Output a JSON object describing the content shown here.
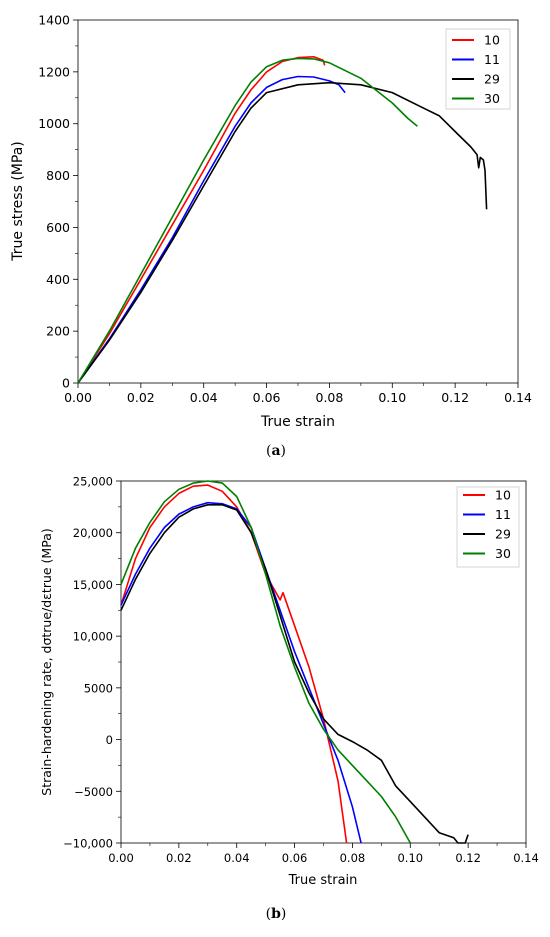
{
  "chart_data": [
    {
      "type": "line",
      "caption_letter": "a",
      "xlabel": "True strain",
      "ylabel": "True stress (MPa)",
      "xlim": [
        0,
        0.14
      ],
      "ylim": [
        0,
        1400
      ],
      "xticks": [
        "0.00",
        "0.02",
        "0.04",
        "0.06",
        "0.08",
        "0.10",
        "0.12",
        "0.14"
      ],
      "yticks": [
        "0",
        "200",
        "400",
        "600",
        "800",
        "1000",
        "1200",
        "1400"
      ],
      "legend_position": "top-right",
      "series": [
        {
          "name": "10",
          "color": "#ff0000",
          "x": [
            0,
            0.01,
            0.02,
            0.03,
            0.04,
            0.05,
            0.055,
            0.06,
            0.065,
            0.07,
            0.075,
            0.078,
            0.0785
          ],
          "y": [
            0,
            190,
            400,
            610,
            820,
            1040,
            1130,
            1200,
            1240,
            1255,
            1258,
            1245,
            1225
          ]
        },
        {
          "name": "11",
          "color": "#0000ff",
          "x": [
            0,
            0.01,
            0.02,
            0.03,
            0.04,
            0.05,
            0.055,
            0.06,
            0.065,
            0.07,
            0.075,
            0.08,
            0.083,
            0.085
          ],
          "y": [
            0,
            170,
            360,
            560,
            780,
            990,
            1080,
            1140,
            1170,
            1182,
            1180,
            1165,
            1150,
            1120
          ]
        },
        {
          "name": "29",
          "color": "#000000",
          "x": [
            0,
            0.01,
            0.02,
            0.03,
            0.04,
            0.05,
            0.055,
            0.06,
            0.07,
            0.08,
            0.09,
            0.1,
            0.11,
            0.115,
            0.12,
            0.125,
            0.127,
            0.1275,
            0.128,
            0.129,
            0.1295,
            0.13
          ],
          "y": [
            0,
            165,
            350,
            550,
            760,
            970,
            1060,
            1120,
            1150,
            1158,
            1150,
            1120,
            1060,
            1030,
            970,
            910,
            880,
            830,
            870,
            860,
            820,
            670
          ]
        },
        {
          "name": "30",
          "color": "#008000",
          "x": [
            0,
            0.01,
            0.02,
            0.03,
            0.04,
            0.05,
            0.055,
            0.06,
            0.065,
            0.07,
            0.075,
            0.08,
            0.09,
            0.1,
            0.105,
            0.108
          ],
          "y": [
            0,
            200,
            420,
            640,
            860,
            1070,
            1160,
            1220,
            1245,
            1252,
            1250,
            1235,
            1175,
            1080,
            1020,
            990
          ]
        }
      ]
    },
    {
      "type": "line",
      "caption_letter": "b",
      "xlabel": "True strain",
      "ylabel": "Strain-hardening rate, dσtrue/dεtrue (MPa)",
      "xlim": [
        0,
        0.14
      ],
      "ylim": [
        -10000,
        25000
      ],
      "xticks": [
        "0.00",
        "0.02",
        "0.04",
        "0.06",
        "0.08",
        "0.10",
        "0.12",
        "0.14"
      ],
      "yticks": [
        "−10,000",
        "−5000",
        "0",
        "5000",
        "10,000",
        "15,000",
        "20,000",
        "25,000"
      ],
      "legend_position": "top-right",
      "series": [
        {
          "name": "10",
          "color": "#ff0000",
          "x": [
            0,
            0.005,
            0.01,
            0.015,
            0.02,
            0.025,
            0.03,
            0.035,
            0.04,
            0.045,
            0.05,
            0.055,
            0.056,
            0.06,
            0.065,
            0.07,
            0.075,
            0.078
          ],
          "y": [
            13000,
            17500,
            20500,
            22500,
            23800,
            24500,
            24600,
            24000,
            22500,
            20000,
            16000,
            13500,
            14200,
            11000,
            7000,
            2000,
            -4000,
            -10000
          ]
        },
        {
          "name": "11",
          "color": "#0000ff",
          "x": [
            0,
            0.005,
            0.01,
            0.015,
            0.02,
            0.025,
            0.03,
            0.035,
            0.04,
            0.045,
            0.05,
            0.055,
            0.06,
            0.065,
            0.07,
            0.075,
            0.08,
            0.083
          ],
          "y": [
            13000,
            16000,
            18500,
            20500,
            21800,
            22500,
            22900,
            22800,
            22300,
            20500,
            16500,
            12500,
            8500,
            5000,
            1500,
            -2000,
            -6500,
            -10000
          ]
        },
        {
          "name": "29",
          "color": "#000000",
          "x": [
            0,
            0.005,
            0.01,
            0.015,
            0.02,
            0.025,
            0.03,
            0.035,
            0.04,
            0.045,
            0.05,
            0.055,
            0.06,
            0.065,
            0.07,
            0.075,
            0.08,
            0.085,
            0.09,
            0.095,
            0.1,
            0.105,
            0.11,
            0.115,
            0.1165,
            0.119,
            0.12
          ],
          "y": [
            12500,
            15500,
            18000,
            20000,
            21500,
            22300,
            22700,
            22700,
            22200,
            20000,
            16500,
            12000,
            7500,
            4500,
            2000,
            500,
            -200,
            -1000,
            -2000,
            -4500,
            -6000,
            -7500,
            -9000,
            -9500,
            -10000,
            -10000,
            -9200
          ]
        },
        {
          "name": "30",
          "color": "#008000",
          "x": [
            0,
            0.005,
            0.01,
            0.015,
            0.02,
            0.025,
            0.03,
            0.035,
            0.04,
            0.045,
            0.05,
            0.055,
            0.06,
            0.065,
            0.07,
            0.075,
            0.08,
            0.085,
            0.09,
            0.095,
            0.1
          ],
          "y": [
            15000,
            18500,
            21000,
            23000,
            24200,
            24800,
            25000,
            24800,
            23500,
            20500,
            16000,
            11000,
            7000,
            3500,
            1000,
            -1000,
            -2500,
            -4000,
            -5500,
            -7500,
            -10000
          ]
        }
      ]
    }
  ]
}
